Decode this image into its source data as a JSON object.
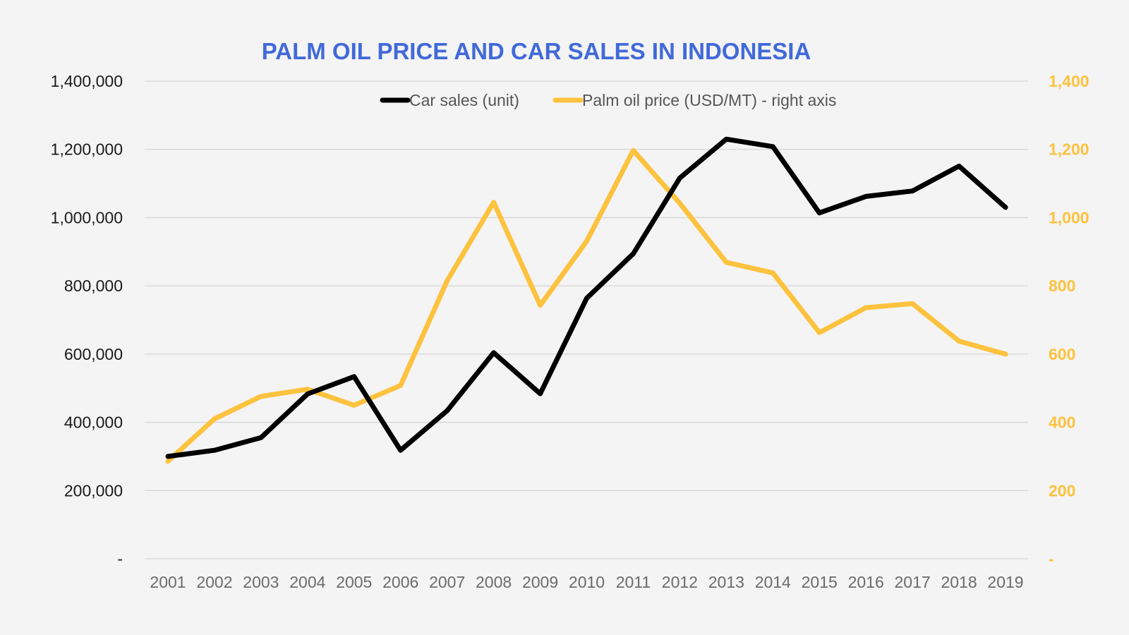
{
  "colors": {
    "title": "#4169d9",
    "car_sales": "#000000",
    "palm_oil": "#fdc23e",
    "grid": "#d6d6d6",
    "background": "#f4f4f4"
  },
  "chart_data": {
    "type": "line",
    "title": "PALM OIL PRICE AND CAR SALES IN INDONESIA",
    "legend_position": "top",
    "grid": true,
    "x": [
      "2001",
      "2002",
      "2003",
      "2004",
      "2005",
      "2006",
      "2007",
      "2008",
      "2009",
      "2010",
      "2011",
      "2012",
      "2013",
      "2014",
      "2015",
      "2016",
      "2017",
      "2018",
      "2019"
    ],
    "y_left": {
      "ylim": [
        0,
        1400000
      ],
      "ticks": [
        0,
        200000,
        400000,
        600000,
        800000,
        1000000,
        1200000,
        1400000
      ],
      "tick_labels": [
        "-",
        "200,000",
        "400,000",
        "600,000",
        "800,000",
        "1,000,000",
        "1,200,000",
        "1,400,000"
      ]
    },
    "y_right": {
      "ylim": [
        0,
        1400
      ],
      "ticks": [
        0,
        200,
        400,
        600,
        800,
        1000,
        1200,
        1400
      ],
      "tick_labels": [
        "-",
        "200",
        "400",
        "600",
        "800",
        "1,000",
        "1,200",
        "1,400"
      ]
    },
    "series": [
      {
        "name": "Car sales (unit)",
        "axis": "left",
        "color": "#000000",
        "values": [
          300000,
          318000,
          355000,
          483000,
          534000,
          318000,
          434000,
          604000,
          484000,
          764000,
          894000,
          1116000,
          1230000,
          1208000,
          1014000,
          1062000,
          1078000,
          1151000,
          1030000
        ]
      },
      {
        "name": "Palm oil price (USD/MT) - right axis",
        "axis": "right",
        "color": "#fdc23e",
        "values": [
          286,
          410,
          476,
          497,
          450,
          508,
          815,
          1045,
          743,
          931,
          1197,
          1042,
          869,
          838,
          663,
          736,
          748,
          638,
          600
        ]
      }
    ]
  }
}
